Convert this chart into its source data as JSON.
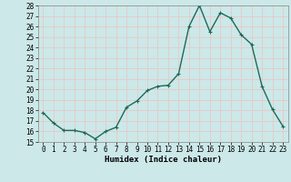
{
  "x": [
    0,
    1,
    2,
    3,
    4,
    5,
    6,
    7,
    8,
    9,
    10,
    11,
    12,
    13,
    14,
    15,
    16,
    17,
    18,
    19,
    20,
    21,
    22,
    23
  ],
  "y": [
    17.8,
    16.8,
    16.1,
    16.1,
    15.9,
    15.3,
    16.0,
    16.4,
    18.3,
    18.9,
    19.9,
    20.3,
    20.4,
    21.5,
    26.0,
    28.0,
    25.5,
    27.3,
    26.8,
    25.2,
    24.3,
    20.3,
    18.1,
    16.5
  ],
  "line_color": "#1a6b5a",
  "marker": "+",
  "marker_size": 3.5,
  "xlabel": "Humidex (Indice chaleur)",
  "ylim": [
    15,
    28
  ],
  "xlim": [
    -0.5,
    23.5
  ],
  "yticks": [
    15,
    16,
    17,
    18,
    19,
    20,
    21,
    22,
    23,
    24,
    25,
    26,
    27,
    28
  ],
  "xticks": [
    0,
    1,
    2,
    3,
    4,
    5,
    6,
    7,
    8,
    9,
    10,
    11,
    12,
    13,
    14,
    15,
    16,
    17,
    18,
    19,
    20,
    21,
    22,
    23
  ],
  "bg_color": "#cce8e8",
  "grid_color": "#e8c8c8",
  "line_width": 1.0,
  "tick_fontsize": 5.5,
  "xlabel_fontsize": 6.5
}
